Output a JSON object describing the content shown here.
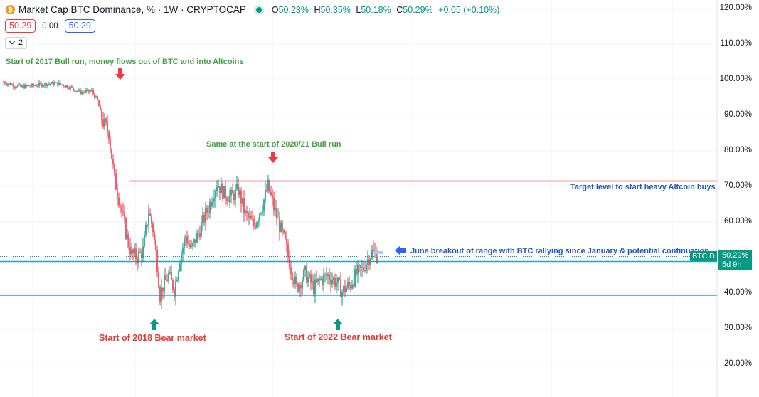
{
  "header": {
    "logo_glyph": "₿",
    "title": "Market Cap BTC Dominance, % · 1W · CRYPTOCAP",
    "ohlc": {
      "o_label": "O",
      "o": "50.23%",
      "h_label": "H",
      "h": "50.35%",
      "l_label": "L",
      "l": "50.18%",
      "c_label": "C",
      "c": "50.29%",
      "change": "+0.05 (+0.10%)"
    }
  },
  "price_row": {
    "sell": "50.29",
    "spread": "0.00",
    "buy": "50.29"
  },
  "indicator_row": {
    "count": "2"
  },
  "colors": {
    "up": "#089981",
    "down": "#f23645",
    "resistance": "#e53935",
    "support": "#22a6c3"
  },
  "icons": {
    "logo": "bitcoin-icon",
    "live": "live-dot-icon",
    "arrow_down": "arrow-down-icon",
    "arrow_up": "arrow-up-icon",
    "arrow_left": "arrow-left-icon"
  },
  "chart_data": {
    "type": "candlestick",
    "ylim": [
      15,
      122
    ],
    "y_ticks": [
      "120.00%",
      "110.00%",
      "100.00%",
      "90.00%",
      "80.00%",
      "70.00%",
      "60.00%",
      "50.00%",
      "40.00%",
      "30.00%",
      "20.00%"
    ],
    "y_tick_values": [
      120,
      110,
      100,
      90,
      80,
      70,
      60,
      50,
      40,
      30,
      20
    ],
    "x_range_weeks": [
      0,
      250
    ],
    "series_path": [
      [
        0,
        99.3
      ],
      [
        6,
        98.6
      ],
      [
        12,
        98.0
      ],
      [
        20,
        98.3
      ],
      [
        30,
        98.8
      ],
      [
        38,
        98.9
      ],
      [
        46,
        98.0
      ],
      [
        54,
        96.5
      ],
      [
        62,
        96.8
      ],
      [
        66,
        94.0
      ],
      [
        70,
        88.0
      ],
      [
        74,
        85.0
      ],
      [
        78,
        72.0
      ],
      [
        82,
        65.0
      ],
      [
        86,
        57.0
      ],
      [
        90,
        51.0
      ],
      [
        94,
        50.0
      ],
      [
        98,
        52.0
      ],
      [
        102,
        63.0
      ],
      [
        105,
        58.0
      ],
      [
        108,
        48.0
      ],
      [
        110,
        39.5
      ],
      [
        112,
        42.0
      ],
      [
        116,
        45.0
      ],
      [
        120,
        41.0
      ],
      [
        124,
        50.0
      ],
      [
        128,
        56.0
      ],
      [
        132,
        52.0
      ],
      [
        138,
        58.0
      ],
      [
        144,
        64.0
      ],
      [
        150,
        71.0
      ],
      [
        155,
        68.0
      ],
      [
        160,
        67.0
      ],
      [
        165,
        69.0
      ],
      [
        170,
        62.0
      ],
      [
        176,
        59.0
      ],
      [
        182,
        65.0
      ],
      [
        186,
        70.0
      ],
      [
        190,
        64.0
      ],
      [
        194,
        59.0
      ],
      [
        198,
        54.0
      ],
      [
        202,
        47.0
      ],
      [
        206,
        41.5
      ],
      [
        212,
        45.5
      ],
      [
        218,
        41.5
      ],
      [
        222,
        43.5
      ],
      [
        228,
        45.0
      ],
      [
        234,
        43.0
      ],
      [
        238,
        40.5
      ],
      [
        244,
        42.5
      ],
      [
        248,
        45.5
      ],
      [
        252,
        46.5
      ],
      [
        256,
        49.5
      ],
      [
        259,
        51.5
      ],
      [
        263,
        50.3
      ]
    ],
    "levels": [
      {
        "name": "target-resistance",
        "value": 71.5,
        "color": "#e53935"
      },
      {
        "name": "range-top",
        "value": 48.9,
        "color": "#22a6c3"
      },
      {
        "name": "range-bottom",
        "value": 39.4,
        "color": "#22a6c3"
      }
    ],
    "last_price": {
      "value": 50.29,
      "label": "50.29%",
      "countdown": "5d 9h",
      "symbol": "BTC.D"
    },
    "annotations": [
      {
        "text": "Start of 2017 Bull run, money flows out of BTC and into Altcoins",
        "color": "green"
      },
      {
        "text": "Same at the start of 2020/21 Bull run",
        "color": "green"
      },
      {
        "text": "Target level to start heavy Altcoin buys",
        "color": "blue"
      },
      {
        "text": "June breakout of range with BTC rallying since January & potential continuation",
        "color": "blue"
      },
      {
        "text": "Start of 2018 Bear market",
        "color": "red"
      },
      {
        "text": "Start of 2022 Bear market",
        "color": "red"
      }
    ]
  }
}
